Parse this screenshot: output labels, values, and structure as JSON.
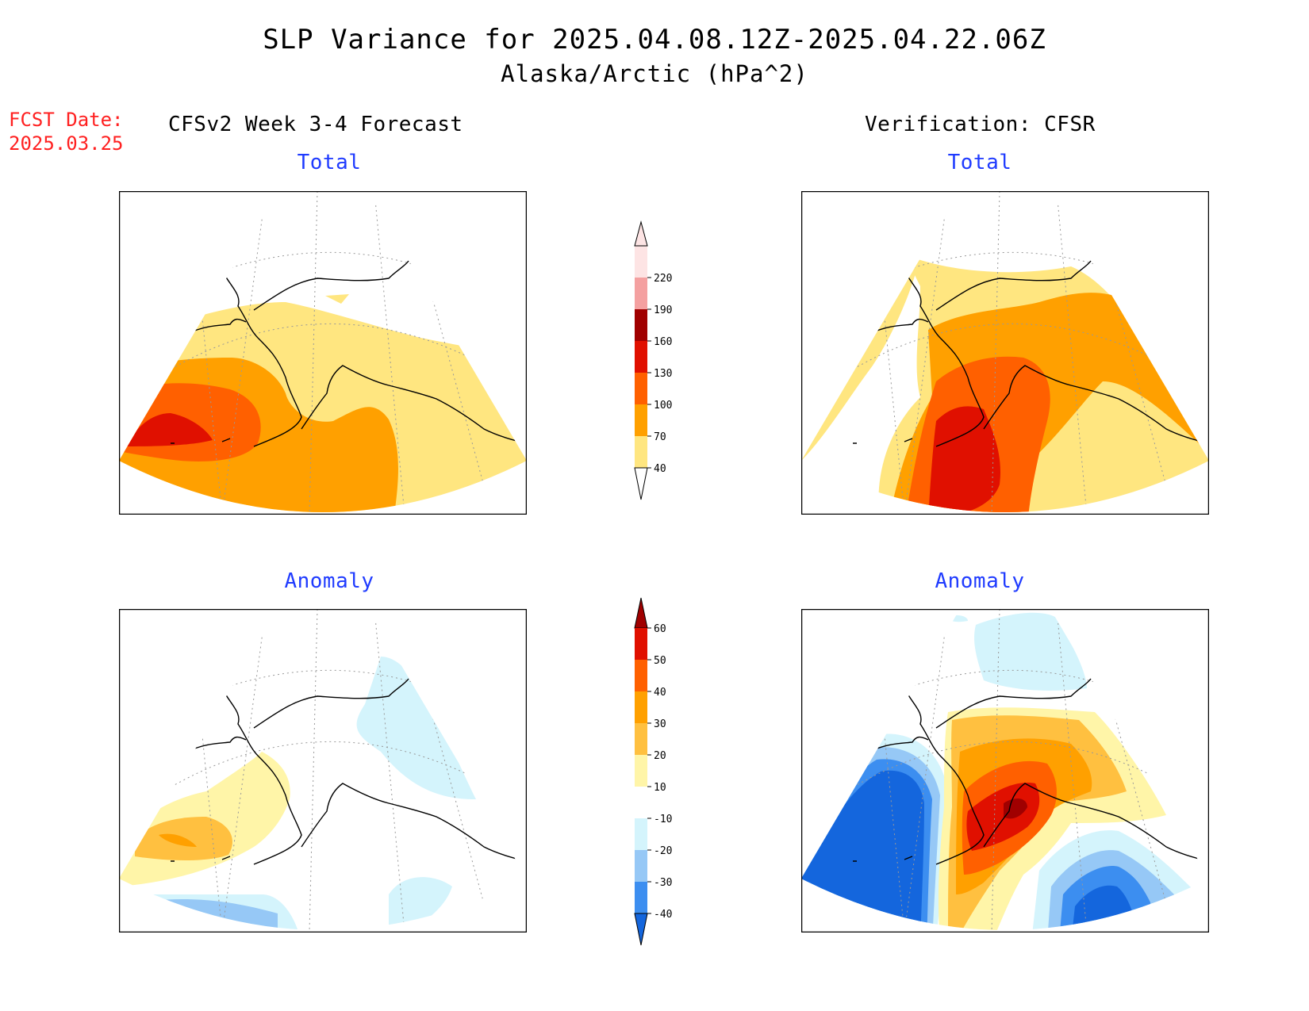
{
  "header": {
    "title": "SLP Variance for 2025.04.08.12Z-2025.04.22.06Z",
    "subtitle": "Alaska/Arctic (hPa^2)",
    "fcst_label": "FCST Date:",
    "fcst_date": "2025.03.25",
    "left_column": "CFSv2 Week 3-4 Forecast",
    "right_column": "Verification: CFSR"
  },
  "panels": {
    "forecast_total": {
      "title": "Total"
    },
    "verification_total": {
      "title": "Total"
    },
    "forecast_anomaly": {
      "title": "Anomaly"
    },
    "verification_anomaly": {
      "title": "Anomaly"
    }
  },
  "colorbar_total": {
    "levels": [
      "40",
      "70",
      "100",
      "130",
      "160",
      "190",
      "220"
    ],
    "colors": [
      "#ffe680",
      "#ffa000",
      "#ff6000",
      "#e01000",
      "#a00000",
      "#f4a0a0",
      "#fde4e4"
    ],
    "below_color": "#ffffff"
  },
  "colorbar_anomaly": {
    "levels": [
      "-40",
      "-30",
      "-20",
      "-10",
      "10",
      "20",
      "30",
      "40",
      "50",
      "60"
    ],
    "colors": [
      "#1466dd",
      "#3c8ef0",
      "#96c8f6",
      "#d4f4fc",
      "#ffffff",
      "#fff5a8",
      "#ffc040",
      "#ffa000",
      "#ff6000",
      "#e01000",
      "#a00000"
    ]
  },
  "icons": {
    "colorbar_end": "triangle-arrow"
  }
}
